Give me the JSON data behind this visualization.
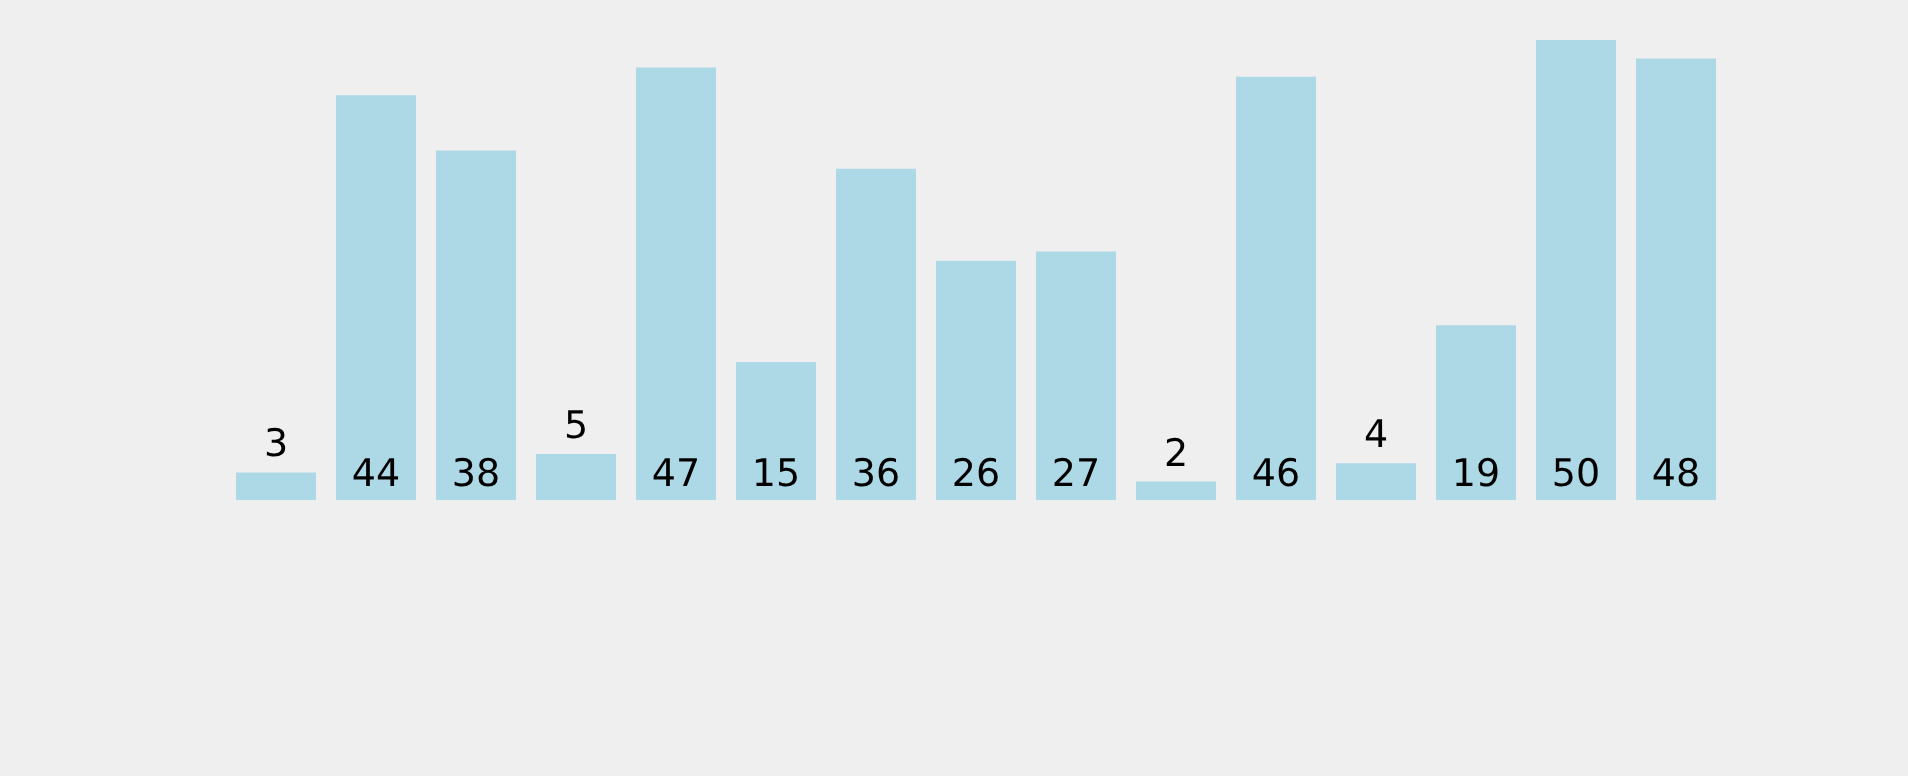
{
  "chart_data": {
    "type": "bar",
    "categories": [
      null,
      null,
      null,
      null,
      null,
      null,
      null,
      null,
      null,
      null,
      null,
      null,
      null,
      null,
      null
    ],
    "values": [
      3,
      44,
      38,
      5,
      47,
      15,
      36,
      26,
      27,
      2,
      46,
      4,
      19,
      50,
      48
    ],
    "color": "#add8e6",
    "data_labels": true,
    "tick_labels": false
  }
}
